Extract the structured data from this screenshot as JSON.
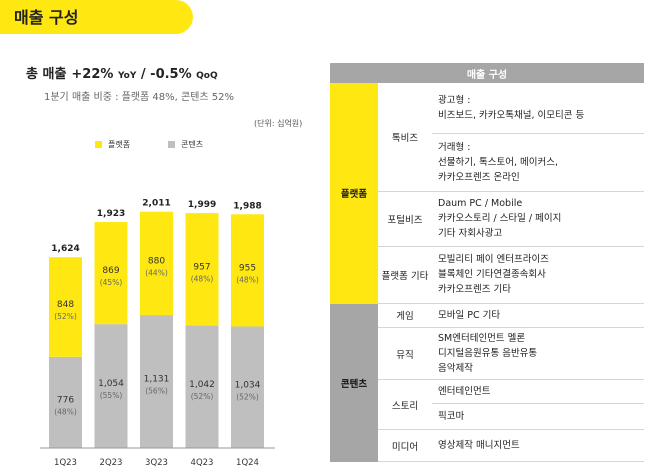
{
  "header": {
    "title": "매출 구성"
  },
  "summary": {
    "label": "총 매출",
    "yoy_value": "+22%",
    "yoy_label": "YoY",
    "separator": "/",
    "qoq_value": "-0.5%",
    "qoq_label": "QoQ",
    "sub": "1분기 매출 비중 : 플랫폼 48%, 콘텐츠 52%"
  },
  "chart_data": {
    "type": "bar",
    "stacked": true,
    "unit_note": "(단위: 십억원)",
    "categories": [
      "1Q23",
      "2Q23",
      "3Q23",
      "4Q23",
      "1Q24"
    ],
    "totals": [
      "1,624",
      "1,923",
      "2,011",
      "1,999",
      "1,988"
    ],
    "series": [
      {
        "name": "콘텐츠",
        "color": "#bfbfbf",
        "values": [
          776,
          1054,
          1131,
          1042,
          1034
        ],
        "labels": [
          "776",
          "1,054",
          "1,131",
          "1,042",
          "1,034"
        ],
        "pct": [
          "(48%)",
          "(55%)",
          "(56%)",
          "(52%)",
          "(52%)"
        ]
      },
      {
        "name": "플랫폼",
        "color": "#ffe812",
        "values": [
          848,
          869,
          880,
          957,
          955
        ],
        "labels": [
          "848",
          "869",
          "880",
          "957",
          "955"
        ],
        "pct": [
          "(52%)",
          "(45%)",
          "(44%)",
          "(48%)",
          "(48%)"
        ]
      }
    ],
    "legend": [
      "플랫폼",
      "콘텐츠"
    ]
  },
  "table": {
    "header": "매출 구성",
    "platform": {
      "label": "플랫폼",
      "rows": [
        {
          "sub": "톡비즈",
          "lines_a": [
            "광고형 :",
            "비즈보드, 카카오톡채널, 이모티콘 등"
          ],
          "lines_b": [
            "거래형 :",
            "선물하기, 톡스토어, 메이커스,",
            "카카오프렌즈 온라인"
          ]
        },
        {
          "sub": "포털비즈",
          "lines": [
            "Daum PC / Mobile",
            "카카오스토리 / 스타일 / 페이지",
            "기타 자회사광고"
          ]
        },
        {
          "sub": "플랫폼 기타",
          "lines": [
            "모빌리티     페이     엔터프라이즈",
            "블록체인     기타연결종속회사",
            "카카오프렌즈 기타"
          ]
        }
      ]
    },
    "content": {
      "label": "콘텐츠",
      "rows": [
        {
          "sub": "게임",
          "lines": [
            "모바일      PC      기타"
          ]
        },
        {
          "sub": "뮤직",
          "lines": [
            "SM엔터테인먼트     멜론",
            "디지털음원유통     음반유통",
            "음악제작"
          ]
        },
        {
          "sub": "스토리",
          "lines_a": [
            "엔터테인먼트"
          ],
          "lines_b": [
            "픽코마"
          ]
        },
        {
          "sub": "미디어",
          "lines": [
            "영상제작     매니지먼트"
          ]
        }
      ]
    }
  }
}
